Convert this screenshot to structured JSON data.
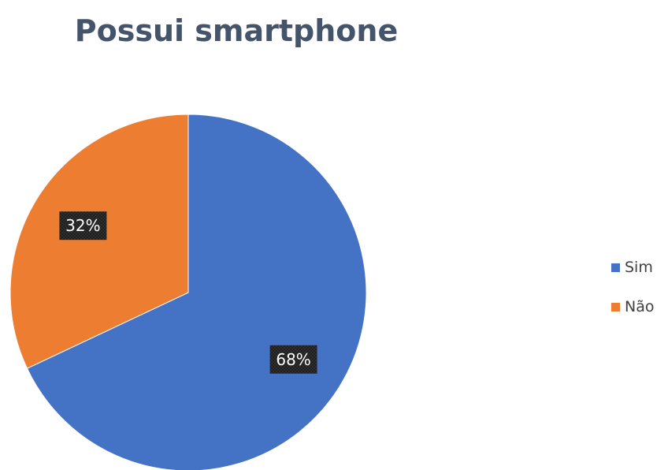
{
  "chart_data": {
    "type": "pie",
    "title": "Possui smartphone",
    "categories": [
      "Sim",
      "Não"
    ],
    "values": [
      68,
      32
    ],
    "data_labels": [
      "68%",
      "32%"
    ],
    "colors": [
      "#4472c4",
      "#ed7d31"
    ],
    "start_angle_deg": 0,
    "direction": "clockwise",
    "legend_position": "right",
    "data_label_style": "dark box, white text"
  }
}
